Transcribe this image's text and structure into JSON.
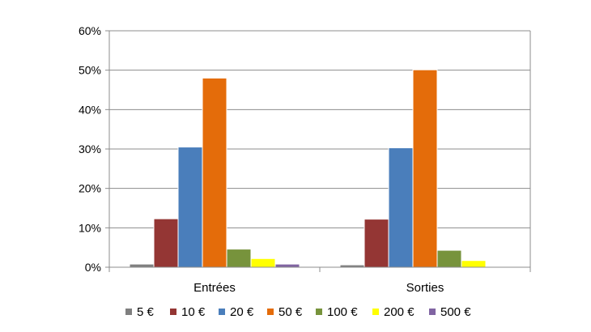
{
  "chart_data": {
    "type": "bar",
    "title": "",
    "xlabel": "",
    "ylabel": "",
    "ylim": [
      0,
      60
    ],
    "yticks": [
      "0%",
      "10%",
      "20%",
      "30%",
      "40%",
      "50%",
      "60%"
    ],
    "yticks_values": [
      0,
      10,
      20,
      30,
      40,
      50,
      60
    ],
    "categories": [
      "Entrées",
      "Sorties"
    ],
    "grid": true,
    "legend_position": "bottom",
    "series": [
      {
        "name": "5 €",
        "color": "#7f7f7f",
        "values": [
          0.8,
          0.6
        ]
      },
      {
        "name": "10 €",
        "color": "#943634",
        "values": [
          12.3,
          12.2
        ]
      },
      {
        "name": "20 €",
        "color": "#4a7ebb",
        "values": [
          30.5,
          30.3
        ]
      },
      {
        "name": "50 €",
        "color": "#e46c0a",
        "values": [
          48.0,
          50.1
        ]
      },
      {
        "name": "100 €",
        "color": "#77933c",
        "values": [
          4.6,
          4.3
        ]
      },
      {
        "name": "200 €",
        "color": "#ffff00",
        "values": [
          2.2,
          1.7
        ]
      },
      {
        "name": "500 €",
        "color": "#8064a2",
        "values": [
          0.8,
          0.0
        ]
      }
    ]
  }
}
